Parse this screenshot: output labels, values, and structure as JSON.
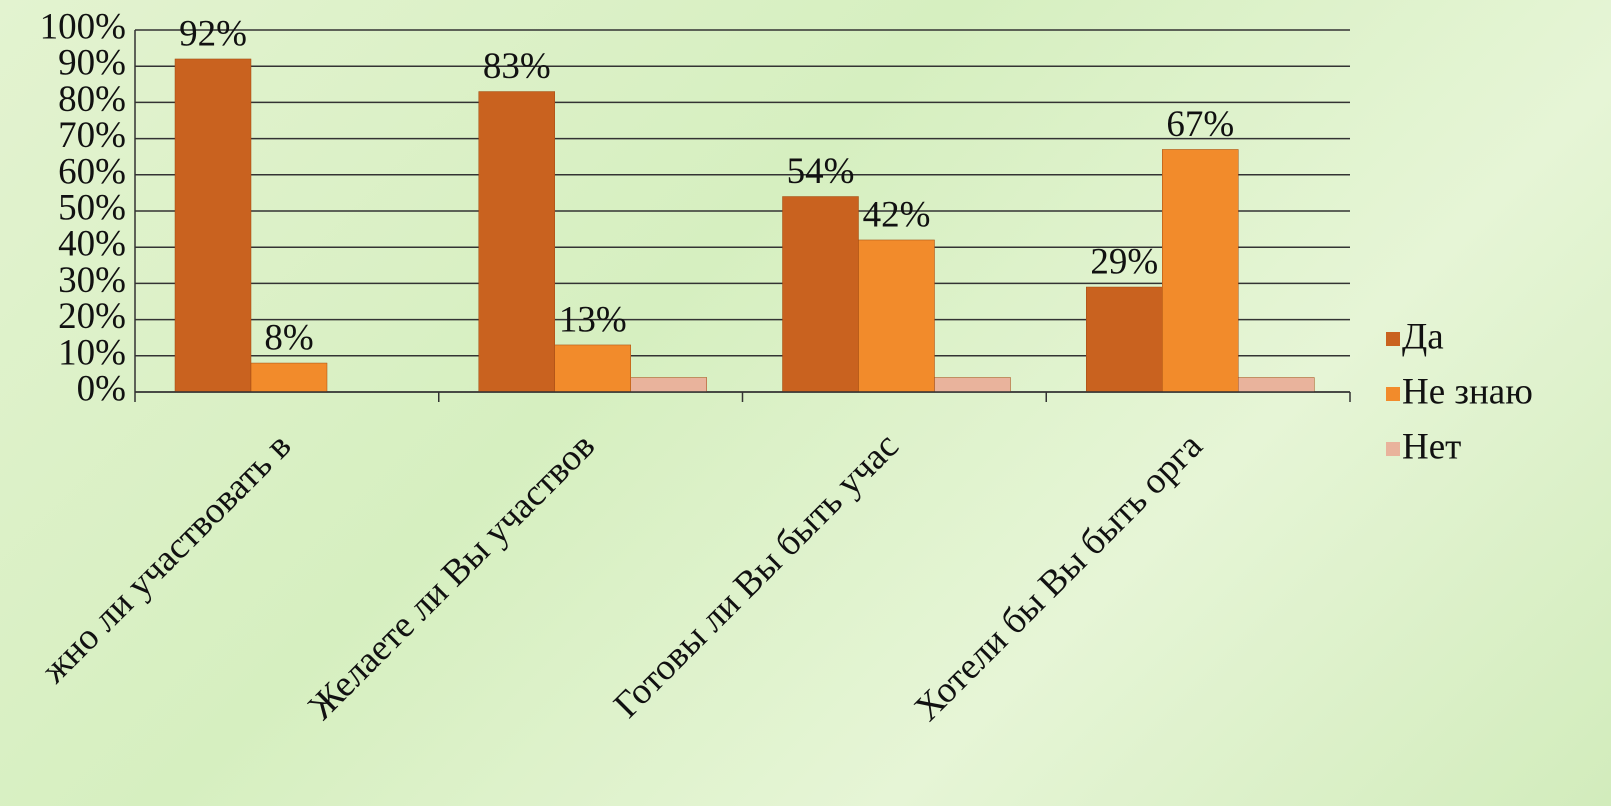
{
  "chart_data": {
    "type": "bar",
    "categories": [
      "жно ли участвовать в",
      "Желаете ли Вы участвов",
      "Готовы ли Вы быть учас",
      "Хотели бы Вы быть орга"
    ],
    "series": [
      {
        "name": "Да",
        "color": "#c9621f",
        "values": [
          92,
          83,
          54,
          29
        ],
        "value_labels": [
          "92%",
          "83%",
          "54%",
          "29%"
        ]
      },
      {
        "name": "Не знаю",
        "color": "#f28b2b",
        "values": [
          8,
          13,
          42,
          67
        ],
        "value_labels": [
          "8%",
          "13%",
          "42%",
          "67%"
        ]
      },
      {
        "name": "Нет",
        "color": "#e9b39c",
        "values": [
          null,
          4,
          4,
          4
        ]
      }
    ],
    "ylim": [
      0,
      100
    ],
    "yticks": [
      {
        "value": 0,
        "label": "0%"
      },
      {
        "value": 10,
        "label": "10%"
      },
      {
        "value": 20,
        "label": "20%"
      },
      {
        "value": 30,
        "label": "30%"
      },
      {
        "value": 40,
        "label": "40%"
      },
      {
        "value": 50,
        "label": "50%"
      },
      {
        "value": 60,
        "label": "60%"
      },
      {
        "value": 70,
        "label": "70%"
      },
      {
        "value": 80,
        "label": "80%"
      },
      {
        "value": 90,
        "label": "90%"
      },
      {
        "value": 100,
        "label": "100%"
      }
    ],
    "grid": true,
    "legend": "right"
  }
}
